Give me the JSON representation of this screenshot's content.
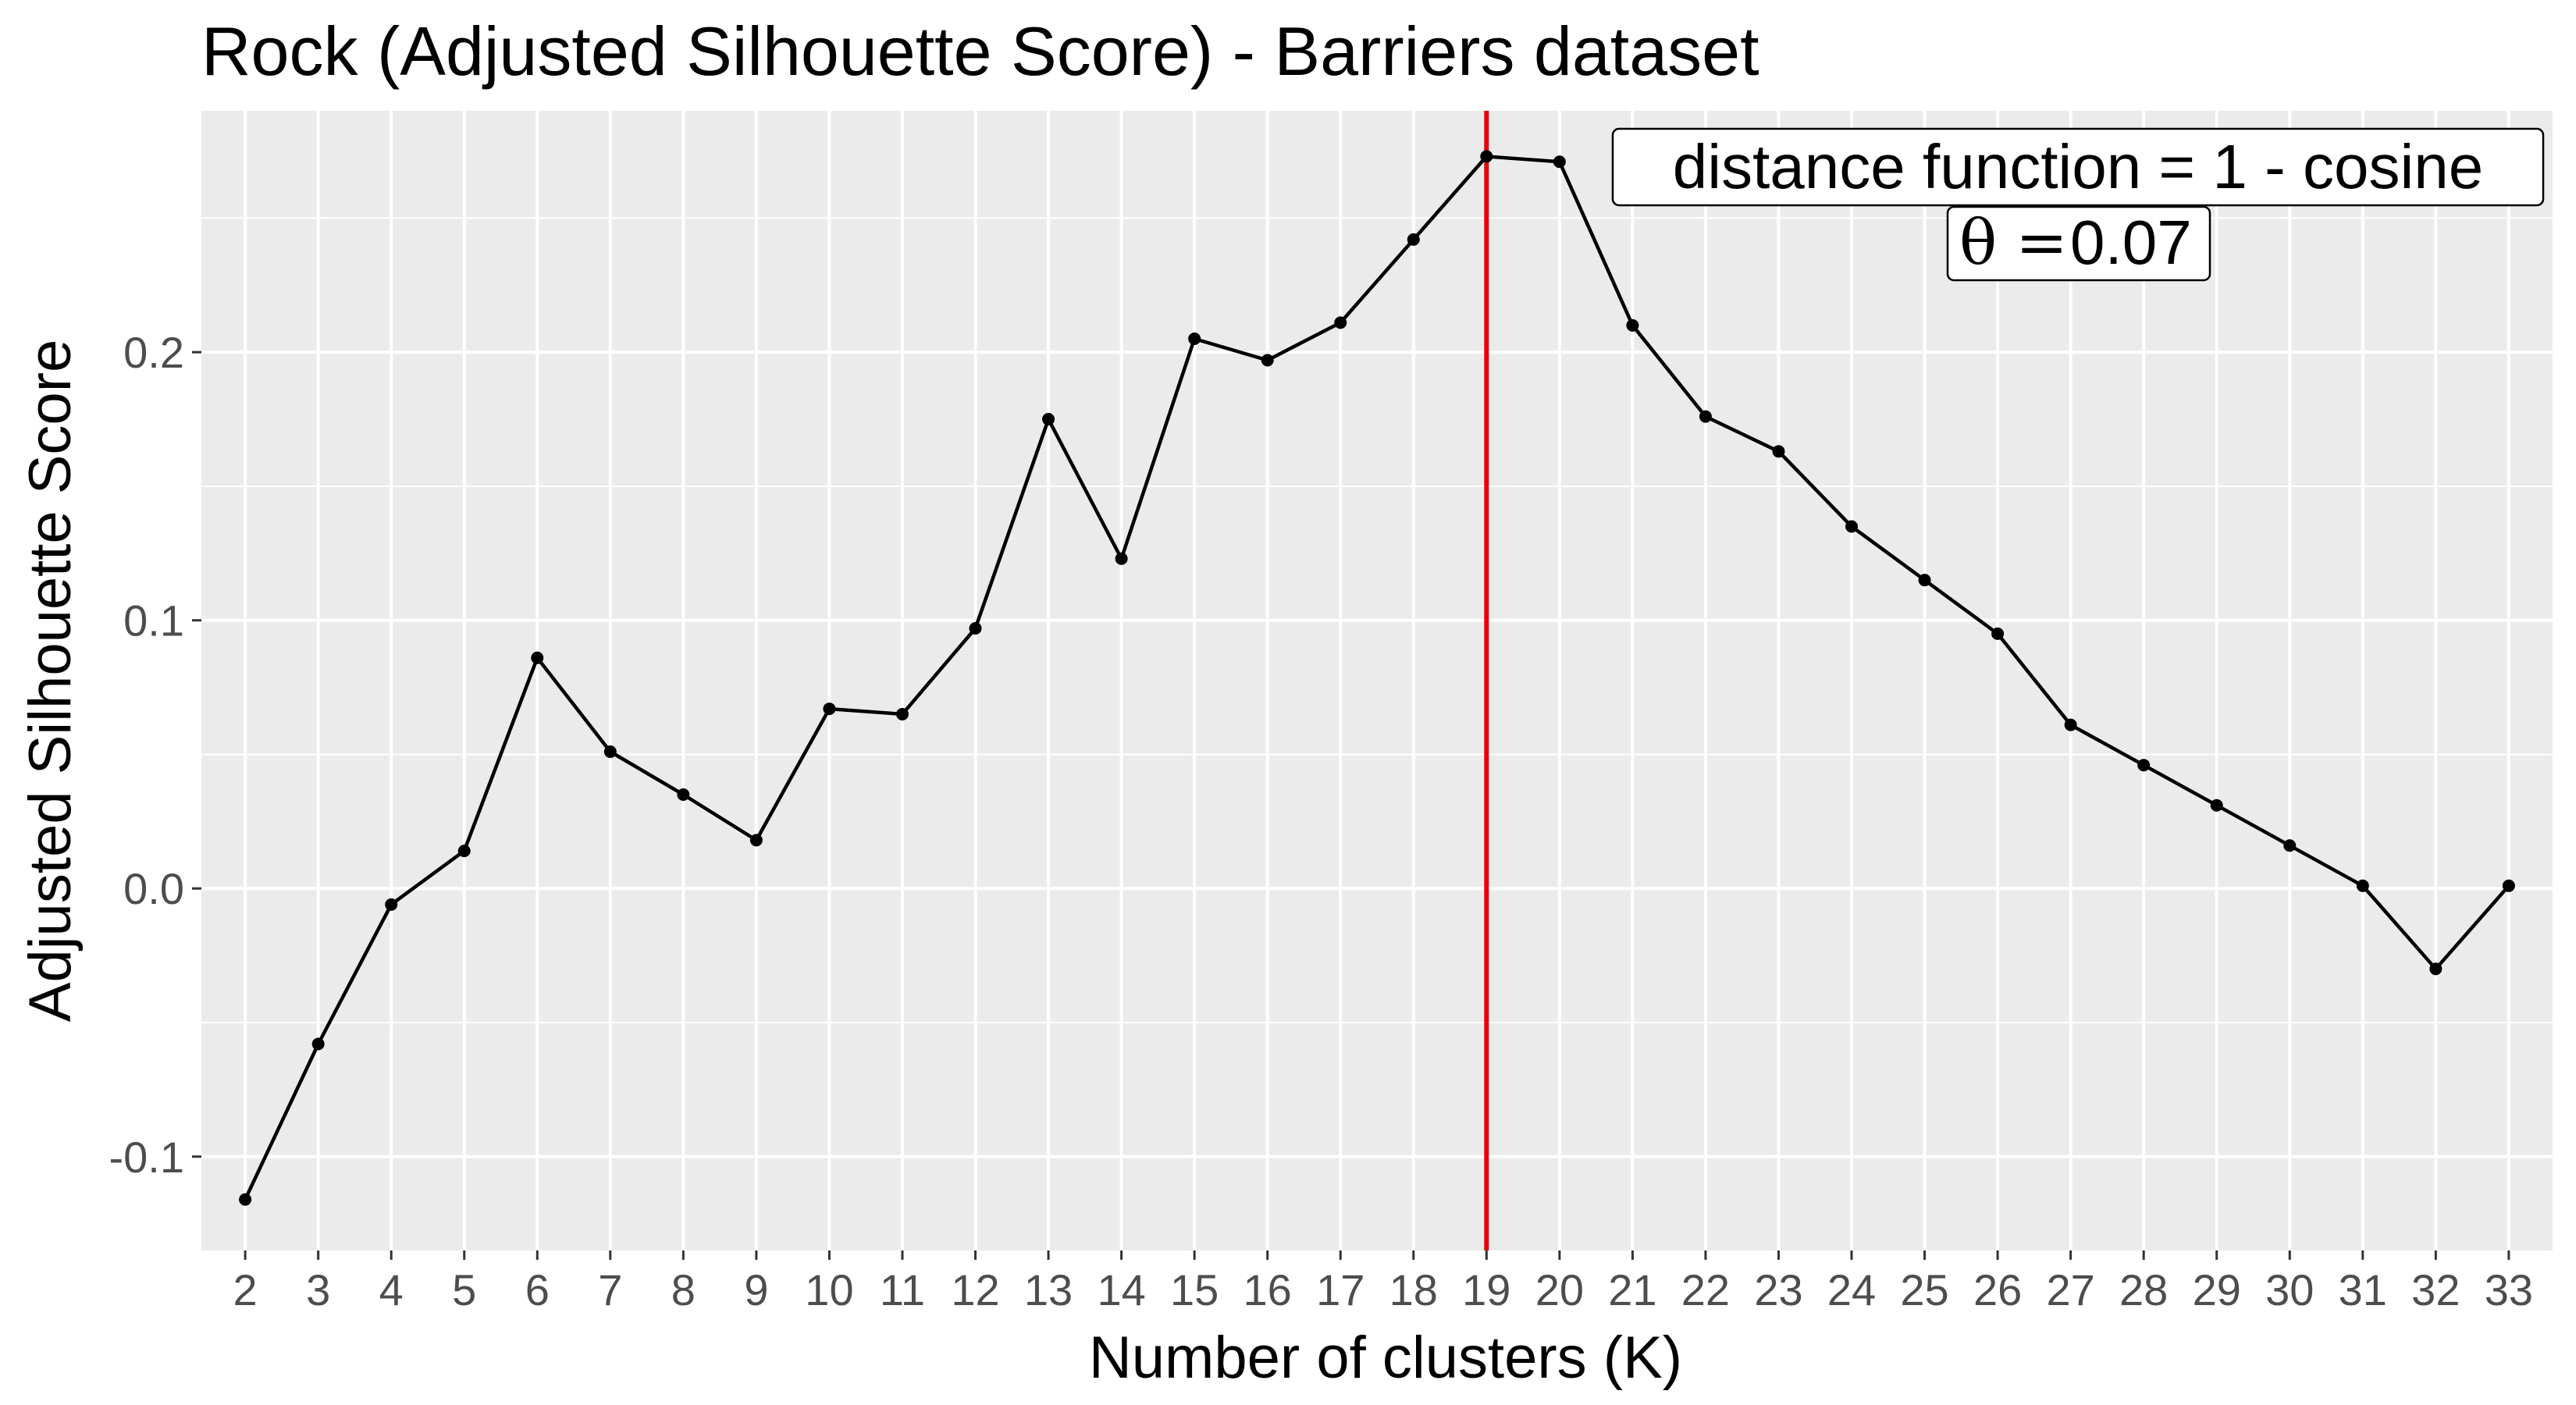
{
  "chart_data": {
    "type": "line",
    "title": "Rock (Adjusted Silhouette Score) - Barriers dataset",
    "xlabel": "Number of clusters (K)",
    "ylabel": "Adjusted Silhouette Score",
    "x": [
      2,
      3,
      4,
      5,
      6,
      7,
      8,
      9,
      10,
      11,
      12,
      13,
      14,
      15,
      16,
      17,
      18,
      19,
      20,
      21,
      22,
      23,
      24,
      25,
      26,
      27,
      28,
      29,
      30,
      31,
      32,
      33
    ],
    "series": [
      {
        "values": [
          -0.116,
          -0.058,
          -0.006,
          0.014,
          0.086,
          0.051,
          0.035,
          0.018,
          0.067,
          0.065,
          0.097,
          0.175,
          0.123,
          0.205,
          0.197,
          0.211,
          0.242,
          0.273,
          0.271,
          0.21,
          0.176,
          0.163,
          0.135,
          0.115,
          0.095,
          0.061,
          0.046,
          0.031,
          0.016,
          0.001,
          -0.03,
          0.001
        ],
        "color": "#000000"
      }
    ],
    "xlim": [
      1.4,
      33.6
    ],
    "ylim": [
      -0.135,
      0.29
    ],
    "y_ticks": [
      -0.1,
      0.0,
      0.1,
      0.2
    ],
    "y_tick_labels": [
      "-0.1",
      "0.0",
      "0.1",
      "0.2"
    ],
    "x_tick_labels": [
      "2",
      "3",
      "4",
      "5",
      "6",
      "7",
      "8",
      "9",
      "10",
      "11",
      "12",
      "13",
      "14",
      "15",
      "16",
      "17",
      "18",
      "19",
      "20",
      "21",
      "22",
      "23",
      "24",
      "25",
      "26",
      "27",
      "28",
      "29",
      "30",
      "31",
      "32",
      "33"
    ],
    "vline": {
      "x": 19,
      "color": "#e60000"
    },
    "annotations": {
      "distance": "distance function = 1 -  cosine",
      "theta_symbol": "θ",
      "theta_equals": "=",
      "theta_value": "0.07"
    },
    "grid": true,
    "panel_background": "#ebebeb",
    "grid_color": "#ffffff",
    "legend": "none"
  }
}
